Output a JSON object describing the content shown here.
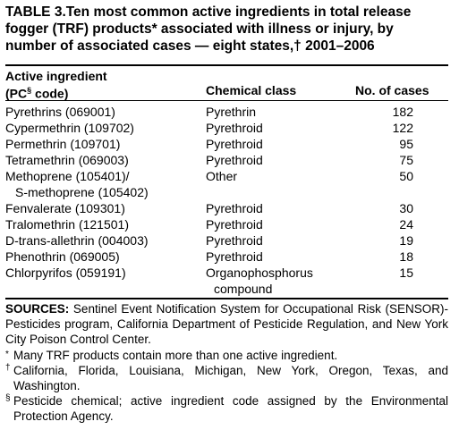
{
  "title_line1": "TABLE 3.Ten most common active ingredients in total release",
  "title_line2": "fogger (TRF) products* associated with illness or injury, by",
  "title_line3": "number of associated cases — eight states,† 2001–2006",
  "headers": {
    "ingredient_line1": "Active ingredient",
    "ingredient_line2_pre": " (PC",
    "ingredient_line2_sup": "§",
    "ingredient_line2_post": " code)",
    "chemical_class": "Chemical class",
    "cases": "No. of cases"
  },
  "rows": [
    {
      "ingredient": "Pyrethrins (069001)",
      "class": "Pyrethrin",
      "cases": "182"
    },
    {
      "ingredient": "Cypermethrin (109702)",
      "class": "Pyrethroid",
      "cases": "122"
    },
    {
      "ingredient": "Permethrin (109701)",
      "class": "Pyrethroid",
      "cases": "95"
    },
    {
      "ingredient": "Tetramethrin (069003)",
      "class": "Pyrethroid",
      "cases": "75"
    },
    {
      "ingredient": "Methoprene (105401)/",
      "ingredient2": "S-methoprene (105402)",
      "class": "Other",
      "cases": "50"
    },
    {
      "ingredient": "Fenvalerate (109301)",
      "class": "Pyrethroid",
      "cases": "30"
    },
    {
      "ingredient": "Tralomethrin (121501)",
      "class": "Pyrethroid",
      "cases": "24"
    },
    {
      "ingredient": "D-trans-allethrin (004003)",
      "class": "Pyrethroid",
      "cases": "19"
    },
    {
      "ingredient": "Phenothrin (069005)",
      "class": "Pyrethroid",
      "cases": "18"
    },
    {
      "ingredient": "Chlorpyrifos (059191)",
      "class": "Organophosphorus",
      "class2": "compound",
      "cases": "15"
    }
  ],
  "sources_label": "SOURCES:",
  "sources_text": " Sentinel Event Notification System for Occupational Risk (SENSOR)-Pesticides program, California Department of Pesticide Regulation, and New York City Poison Control Center.",
  "footnotes": [
    {
      "mark": "*",
      "text": "Many TRF products contain more than one active ingredient."
    },
    {
      "mark": "†",
      "text": "California, Florida, Louisiana, Michigan, New York, Oregon, Texas, and Washington."
    },
    {
      "mark": "§",
      "text": "Pesticide chemical; active ingredient code assigned by the Environmental Protection Agency."
    }
  ]
}
